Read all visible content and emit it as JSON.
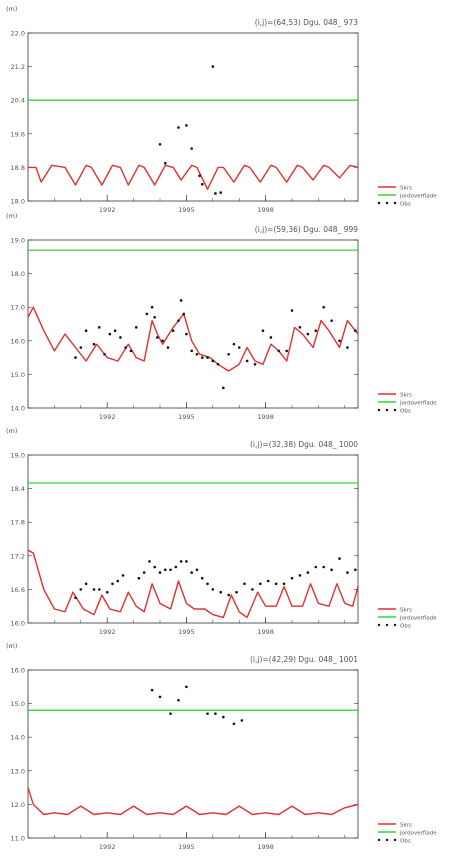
{
  "chart_data": [
    {
      "type": "line",
      "unit_label": "(m)",
      "title": "(i,j)=(64,53) Dgu. 048_ 973",
      "ylim": [
        18.0,
        22.0
      ],
      "yticks": [
        "18.0",
        "18.8",
        "19.6",
        "20.4",
        "21.2",
        "22.0"
      ],
      "xticks": [
        "1992",
        "1995",
        "1998"
      ],
      "series": [
        {
          "name": "Skrs",
          "color": "#e03030",
          "style": "line",
          "x": [
            1989.0,
            1989.3,
            1989.5,
            1989.9,
            1990.4,
            1990.8,
            1991.2,
            1991.4,
            1991.8,
            1992.2,
            1992.5,
            1992.8,
            1993.2,
            1993.4,
            1993.8,
            1994.2,
            1994.5,
            1994.8,
            1995.2,
            1995.4,
            1995.8,
            1996.2,
            1996.4,
            1996.8,
            1997.2,
            1997.4,
            1997.8,
            1998.2,
            1998.4,
            1998.8,
            1999.2,
            1999.4,
            1999.8,
            2000.2,
            2000.4,
            2000.8,
            2001.2,
            2001.5
          ],
          "y": [
            18.8,
            18.8,
            18.45,
            18.85,
            18.8,
            18.38,
            18.85,
            18.8,
            18.38,
            18.85,
            18.8,
            18.38,
            18.85,
            18.8,
            18.38,
            18.85,
            18.8,
            18.5,
            18.85,
            18.8,
            18.28,
            18.8,
            18.8,
            18.45,
            18.85,
            18.8,
            18.45,
            18.85,
            18.8,
            18.45,
            18.85,
            18.8,
            18.5,
            18.85,
            18.8,
            18.55,
            18.85,
            18.8
          ]
        },
        {
          "name": "Jordoverflade",
          "color": "#39d43a",
          "style": "line",
          "x": [
            1989.0,
            2001.5
          ],
          "y": [
            20.4,
            20.4
          ]
        },
        {
          "name": "Obs",
          "color": "#111111",
          "style": "points",
          "x": [
            1994.0,
            1994.2,
            1994.7,
            1995.0,
            1995.2,
            1995.5,
            1995.6,
            1996.0,
            1996.1,
            1996.3
          ],
          "y": [
            19.35,
            18.9,
            19.75,
            19.8,
            19.25,
            18.6,
            18.4,
            21.2,
            18.18,
            18.2
          ]
        }
      ]
    },
    {
      "type": "line",
      "unit_label": "(m)",
      "title": "(i,j)=(59,36) Dgu. 048_ 999",
      "ylim": [
        14.0,
        19.0
      ],
      "yticks": [
        "14.0",
        "15.0",
        "16.0",
        "17.0",
        "18.0",
        "19.0"
      ],
      "xticks": [
        "1992",
        "1995",
        "1998"
      ],
      "series": [
        {
          "name": "Skrs",
          "color": "#e03030",
          "style": "line",
          "x": [
            1989.0,
            1989.2,
            1989.6,
            1990.0,
            1990.4,
            1990.8,
            1991.2,
            1991.6,
            1992.0,
            1992.4,
            1992.8,
            1993.1,
            1993.4,
            1993.7,
            1993.9,
            1994.1,
            1994.5,
            1994.9,
            1995.2,
            1995.5,
            1995.9,
            1996.2,
            1996.6,
            1997.0,
            1997.3,
            1997.6,
            1997.9,
            1998.2,
            1998.5,
            1998.8,
            1999.1,
            1999.4,
            1999.8,
            2000.1,
            2000.4,
            2000.8,
            2001.1,
            2001.5
          ],
          "y": [
            16.7,
            17.0,
            16.3,
            15.7,
            16.2,
            15.8,
            15.4,
            15.9,
            15.5,
            15.4,
            15.9,
            15.5,
            15.4,
            16.6,
            16.2,
            15.9,
            16.4,
            16.8,
            16.0,
            15.6,
            15.5,
            15.3,
            15.1,
            15.3,
            15.8,
            15.4,
            15.3,
            15.9,
            15.7,
            15.4,
            16.4,
            16.2,
            15.8,
            16.6,
            16.3,
            15.8,
            16.6,
            16.2
          ]
        },
        {
          "name": "Jordoverflade",
          "color": "#39d43a",
          "style": "line",
          "x": [
            1989.0,
            2001.5
          ],
          "y": [
            18.7,
            18.7
          ]
        },
        {
          "name": "Obs",
          "color": "#111111",
          "style": "points",
          "x": [
            1990.8,
            1991.0,
            1991.2,
            1991.5,
            1991.7,
            1991.9,
            1992.1,
            1992.3,
            1992.5,
            1992.7,
            1992.9,
            1993.1,
            1993.5,
            1993.7,
            1993.8,
            1993.9,
            1994.1,
            1994.3,
            1994.5,
            1994.7,
            1994.8,
            1994.9,
            1995.0,
            1995.2,
            1995.4,
            1995.6,
            1995.8,
            1996.0,
            1996.2,
            1996.4,
            1996.6,
            1996.8,
            1997.0,
            1997.3,
            1997.6,
            1997.9,
            1998.2,
            1998.5,
            1998.8,
            1999.0,
            1999.3,
            1999.6,
            1999.9,
            2000.2,
            2000.5,
            2000.8,
            2001.1,
            2001.4
          ],
          "y": [
            15.5,
            15.8,
            16.3,
            15.9,
            16.4,
            15.6,
            16.2,
            16.3,
            16.1,
            15.8,
            15.7,
            16.4,
            16.8,
            17.0,
            16.7,
            16.1,
            16.0,
            15.8,
            16.3,
            16.6,
            17.2,
            16.8,
            16.2,
            15.7,
            15.6,
            15.5,
            15.5,
            15.4,
            15.3,
            14.6,
            15.6,
            15.9,
            15.8,
            15.4,
            15.3,
            16.3,
            16.1,
            15.7,
            15.7,
            16.9,
            16.4,
            16.2,
            16.3,
            17.0,
            16.6,
            16.0,
            15.8,
            16.3
          ]
        }
      ]
    },
    {
      "type": "line",
      "unit_label": "(m)",
      "title": "(i,j)=(32,38) Dgu. 048_ 1000",
      "ylim": [
        16.0,
        19.0
      ],
      "yticks": [
        "16.0",
        "16.6",
        "17.2",
        "17.8",
        "18.4",
        "19.0"
      ],
      "xticks": [
        "1992",
        "1995",
        "1998"
      ],
      "series": [
        {
          "name": "Skrs",
          "color": "#e03030",
          "style": "line",
          "x": [
            1989.0,
            1989.2,
            1989.6,
            1990.0,
            1990.4,
            1990.7,
            1991.1,
            1991.5,
            1991.8,
            1992.1,
            1992.5,
            1992.8,
            1993.1,
            1993.4,
            1993.7,
            1994.0,
            1994.4,
            1994.7,
            1995.0,
            1995.3,
            1995.7,
            1996.0,
            1996.4,
            1996.7,
            1997.0,
            1997.3,
            1997.7,
            1998.0,
            1998.4,
            1998.7,
            1999.0,
            1999.4,
            1999.7,
            2000.0,
            2000.4,
            2000.7,
            2001.0,
            2001.3,
            2001.5
          ],
          "y": [
            17.3,
            17.25,
            16.6,
            16.25,
            16.2,
            16.55,
            16.25,
            16.15,
            16.5,
            16.25,
            16.2,
            16.55,
            16.3,
            16.2,
            16.7,
            16.35,
            16.25,
            16.75,
            16.35,
            16.25,
            16.25,
            16.15,
            16.1,
            16.5,
            16.2,
            16.1,
            16.55,
            16.3,
            16.3,
            16.65,
            16.3,
            16.3,
            16.7,
            16.35,
            16.3,
            16.7,
            16.35,
            16.3,
            16.65
          ]
        },
        {
          "name": "Jordoverflade",
          "color": "#39d43a",
          "style": "line",
          "x": [
            1989.0,
            2001.5
          ],
          "y": [
            18.5,
            18.5
          ]
        },
        {
          "name": "Obs",
          "color": "#111111",
          "style": "points",
          "x": [
            1990.8,
            1991.0,
            1991.2,
            1991.5,
            1991.7,
            1992.0,
            1992.2,
            1992.4,
            1992.6,
            1993.2,
            1993.4,
            1993.6,
            1993.8,
            1994.0,
            1994.2,
            1994.4,
            1994.6,
            1994.8,
            1995.0,
            1995.2,
            1995.4,
            1995.6,
            1995.8,
            1996.0,
            1996.3,
            1996.6,
            1996.9,
            1997.2,
            1997.5,
            1997.8,
            1998.1,
            1998.4,
            1998.7,
            1999.0,
            1999.3,
            1999.6,
            1999.9,
            2000.2,
            2000.5,
            2000.8,
            2001.1,
            2001.4
          ],
          "y": [
            16.45,
            16.6,
            16.7,
            16.6,
            16.6,
            16.55,
            16.7,
            16.75,
            16.85,
            16.8,
            16.9,
            17.1,
            17.0,
            16.9,
            16.95,
            16.95,
            17.0,
            17.1,
            17.1,
            16.9,
            16.95,
            16.8,
            16.7,
            16.6,
            16.55,
            16.5,
            16.55,
            16.7,
            16.6,
            16.7,
            16.75,
            16.7,
            16.7,
            16.8,
            16.85,
            16.9,
            17.0,
            17.0,
            16.95,
            17.15,
            16.9,
            16.95
          ]
        }
      ]
    },
    {
      "type": "line",
      "unit_label": "(m)",
      "title": "(i,j)=(42,29) Dgu. 048_ 1001",
      "ylim": [
        11.0,
        16.0
      ],
      "yticks": [
        "11.0",
        "12.0",
        "13.0",
        "14.0",
        "15.0",
        "16.0"
      ],
      "xticks": [
        "1992",
        "1995",
        "1998"
      ],
      "series": [
        {
          "name": "Skrs",
          "color": "#e03030",
          "style": "line",
          "x": [
            1989.0,
            1989.2,
            1989.6,
            1990.0,
            1990.5,
            1991.0,
            1991.5,
            1992.0,
            1992.5,
            1993.0,
            1993.5,
            1994.0,
            1994.5,
            1995.0,
            1995.5,
            1996.0,
            1996.5,
            1997.0,
            1997.5,
            1998.0,
            1998.5,
            1999.0,
            1999.5,
            2000.0,
            2000.5,
            2001.0,
            2001.5
          ],
          "y": [
            12.5,
            12.0,
            11.7,
            11.75,
            11.7,
            11.95,
            11.7,
            11.75,
            11.7,
            11.95,
            11.7,
            11.75,
            11.7,
            11.95,
            11.7,
            11.75,
            11.7,
            11.95,
            11.7,
            11.75,
            11.7,
            11.95,
            11.7,
            11.75,
            11.7,
            11.9,
            12.0
          ]
        },
        {
          "name": "Jordoverflade",
          "color": "#39d43a",
          "style": "line",
          "x": [
            1989.0,
            2001.5
          ],
          "y": [
            14.8,
            14.8
          ]
        },
        {
          "name": "Obs",
          "color": "#111111",
          "style": "points",
          "x": [
            1993.7,
            1994.0,
            1994.4,
            1994.7,
            1995.0,
            1995.8,
            1996.1,
            1996.4,
            1996.8,
            1997.1
          ],
          "y": [
            15.4,
            15.2,
            14.7,
            15.1,
            15.5,
            14.7,
            14.7,
            14.6,
            14.4,
            14.5
          ]
        }
      ]
    }
  ],
  "legend": {
    "items": [
      "Skrs",
      "Jordoverflade",
      "Obs"
    ]
  }
}
